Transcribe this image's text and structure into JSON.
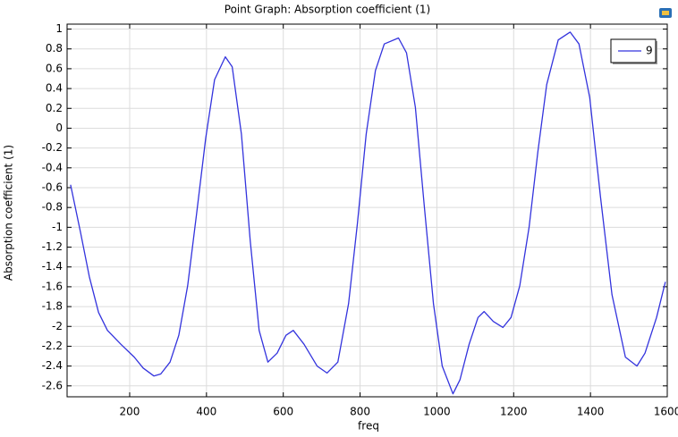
{
  "chart_data": {
    "type": "line",
    "title": "Point Graph: Absorption coefficient (1)",
    "xlabel": "freq",
    "ylabel": "Absorption coefficient (1)",
    "x": [
      46,
      72,
      95,
      119,
      142,
      177,
      212,
      235,
      263,
      281,
      305,
      328,
      351,
      374,
      398,
      421,
      449,
      467,
      491,
      514,
      537,
      560,
      584,
      607,
      626,
      654,
      688,
      714,
      742,
      770,
      793,
      816,
      840,
      863,
      900,
      921,
      944,
      967,
      991,
      1014,
      1042,
      1060,
      1084,
      1107,
      1123,
      1147,
      1172,
      1193,
      1216,
      1240,
      1263,
      1286,
      1316,
      1347,
      1370,
      1398,
      1426,
      1456,
      1491,
      1521,
      1542,
      1572,
      1595
    ],
    "series": [
      {
        "name": "9",
        "color": "#3333dd",
        "values": [
          -0.57,
          -1.05,
          -1.5,
          -1.86,
          -2.04,
          -2.18,
          -2.31,
          -2.42,
          -2.5,
          -2.48,
          -2.36,
          -2.09,
          -1.59,
          -0.87,
          -0.1,
          0.49,
          0.72,
          0.62,
          -0.06,
          -1.14,
          -2.04,
          -2.36,
          -2.27,
          -2.09,
          -2.04,
          -2.18,
          -2.4,
          -2.47,
          -2.36,
          -1.77,
          -0.96,
          -0.06,
          0.58,
          0.85,
          0.91,
          0.76,
          0.21,
          -0.78,
          -1.77,
          -2.4,
          -2.68,
          -2.54,
          -2.18,
          -1.91,
          -1.85,
          -1.95,
          -2.01,
          -1.91,
          -1.59,
          -1.0,
          -0.24,
          0.44,
          0.89,
          0.97,
          0.85,
          0.31,
          -0.69,
          -1.68,
          -2.31,
          -2.4,
          -2.27,
          -1.91,
          -1.55
        ]
      }
    ],
    "xlim": [
      37,
      1600
    ],
    "ylim": [
      -2.71,
      1.05
    ],
    "xticks": [
      200,
      400,
      600,
      800,
      1000,
      1200,
      1400,
      1600
    ],
    "yticks": [
      1,
      0.8,
      0.6,
      0.4,
      0.2,
      0,
      -0.2,
      -0.4,
      -0.6,
      -0.8,
      -1,
      -1.2,
      -1.4,
      -1.6,
      -1.8,
      -2,
      -2.2,
      -2.4,
      -2.6
    ],
    "grid": true,
    "legend": "upper right"
  }
}
